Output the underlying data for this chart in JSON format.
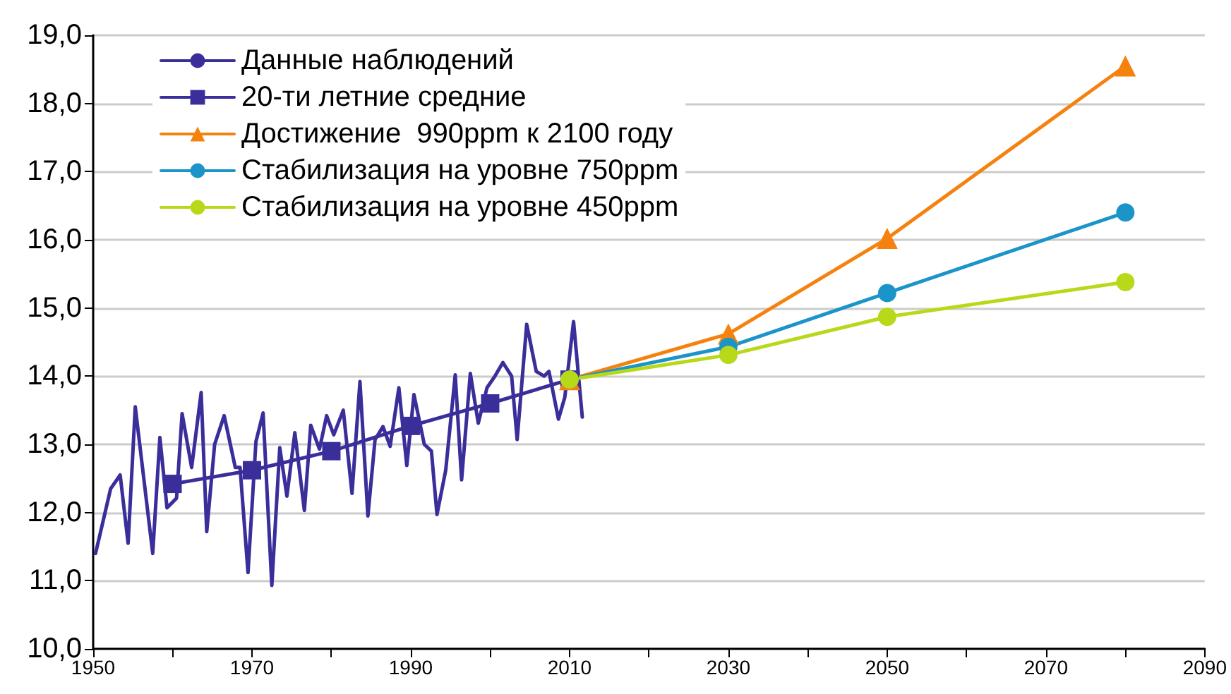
{
  "chart_data": {
    "type": "line",
    "xlim": [
      1950,
      2090
    ],
    "ylim": [
      10,
      19
    ],
    "xticks": [
      1950,
      {
        "value": 1960,
        "label": null
      },
      1970,
      {
        "value": 1980,
        "label": null
      },
      1990,
      {
        "value": 2000,
        "label": null
      },
      2010,
      {
        "value": 2020,
        "label": null
      },
      2030,
      {
        "value": 2040,
        "label": null
      },
      2050,
      {
        "value": 2060,
        "label": null
      },
      2070,
      {
        "value": 2080,
        "label": null
      },
      2090
    ],
    "yticks": [
      {
        "value": 10,
        "label": "10,0"
      },
      {
        "value": 11,
        "label": "11,0"
      },
      {
        "value": 12,
        "label": "12,0"
      },
      {
        "value": 13,
        "label": "13,0"
      },
      {
        "value": 14,
        "label": "14,0"
      },
      {
        "value": 15,
        "label": "15,0"
      },
      {
        "value": 16,
        "label": "16,0"
      },
      {
        "value": 17,
        "label": "17,0"
      },
      {
        "value": 18,
        "label": "18,0"
      },
      {
        "value": 19,
        "label": "19,0"
      }
    ],
    "grid": "y",
    "legend": "top left",
    "line_style": "solid",
    "series": [
      {
        "name": "Данные наблюдений",
        "color": "#3a2f9a",
        "marker": "none",
        "x": [
          1950.3,
          1952.2,
          1953.4,
          1954.4,
          1955.3,
          1957.5,
          1958.4,
          1959.3,
          1960.5,
          1961.2,
          1962.4,
          1963.6,
          1964.3,
          1965.3,
          1966.5,
          1967.9,
          1968.5,
          1969.5,
          1970.5,
          1971.4,
          1972.5,
          1973.5,
          1974.4,
          1975.4,
          1976.6,
          1977.4,
          1978.5,
          1979.4,
          1980.3,
          1981.5,
          1982.6,
          1983.6,
          1984.6,
          1985.5,
          1986.5,
          1987.4,
          1988.5,
          1989.5,
          1990.4,
          1991.7,
          1992.6,
          1993.3,
          1994.4,
          1995.6,
          1996.4,
          1997.5,
          1998.5,
          1999.6,
          2000.6,
          2001.6,
          2002.7,
          2003.4,
          2004.6,
          2005.8,
          2006.8,
          2007.4,
          2008.6,
          2009.4,
          2010.5,
          2011.6
        ],
        "values": [
          11.4,
          12.35,
          12.55,
          11.55,
          13.55,
          11.4,
          13.1,
          12.07,
          12.21,
          13.45,
          12.66,
          13.76,
          11.72,
          13.0,
          13.42,
          12.66,
          12.66,
          11.12,
          13.04,
          13.46,
          10.93,
          12.95,
          12.24,
          13.17,
          12.03,
          13.28,
          12.93,
          13.42,
          13.14,
          13.5,
          12.28,
          13.92,
          11.95,
          13.07,
          13.26,
          12.97,
          13.83,
          12.69,
          13.73,
          13.0,
          12.9,
          11.97,
          12.62,
          14.02,
          12.48,
          14.04,
          13.31,
          13.83,
          14.0,
          14.2,
          14.0,
          13.07,
          14.76,
          14.07,
          14.0,
          14.07,
          13.37,
          13.69,
          14.8,
          13.4
        ]
      },
      {
        "name": "20-ти летние средние",
        "color": "#3a2f9a",
        "marker": "square",
        "x": [
          1960,
          1970,
          1980,
          1990,
          2000,
          2010
        ],
        "values": [
          12.42,
          12.62,
          12.9,
          13.27,
          13.6,
          13.95
        ]
      },
      {
        "name": "Достижение  990ppm к 2100 году",
        "color": "#f5820f",
        "marker": "triangle",
        "x": [
          2010,
          2030,
          2050,
          2080
        ],
        "values": [
          13.95,
          14.62,
          16.02,
          18.55
        ]
      },
      {
        "name": "Стабилизация на уровне 750ppm",
        "color": "#1b95c9",
        "marker": "circle",
        "x": [
          2010,
          2030,
          2050,
          2080
        ],
        "values": [
          13.95,
          14.43,
          15.22,
          16.4
        ]
      },
      {
        "name": "Стабилизация на уровне 450ppm",
        "color": "#b8d91a",
        "marker": "circle",
        "x": [
          2010,
          2030,
          2050,
          2080
        ],
        "values": [
          13.95,
          14.31,
          14.87,
          15.38
        ]
      }
    ]
  }
}
